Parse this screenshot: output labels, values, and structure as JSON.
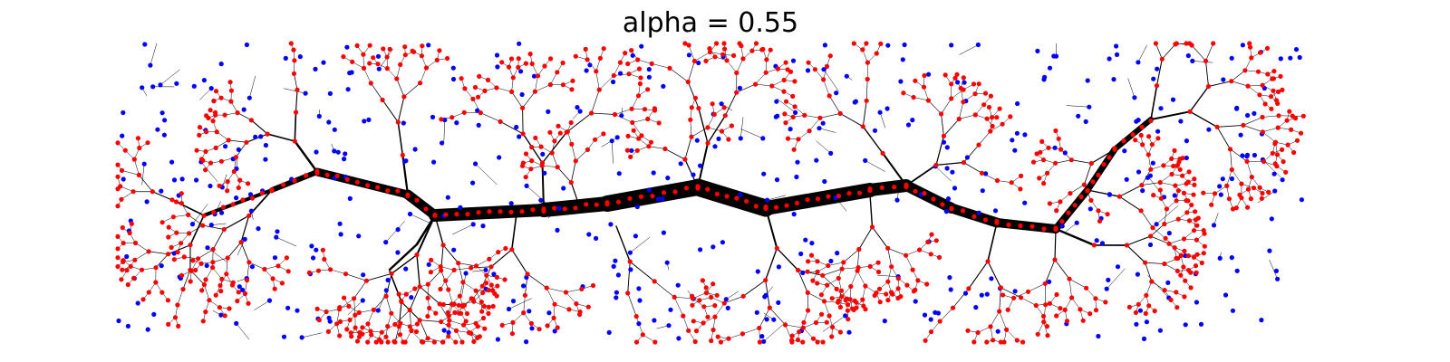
{
  "title": "alpha = 0.55",
  "colors": {
    "background": "#ffffff",
    "trunk": "#000000",
    "branch": "#000000",
    "faint_edge": "#9a9a9a",
    "node_on_tree": "#ff0000",
    "node_off_tree": "#0000ff"
  }
}
